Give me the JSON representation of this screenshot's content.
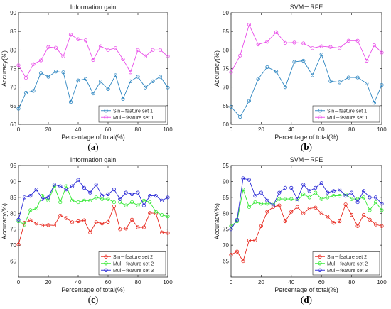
{
  "chart_data": [
    {
      "type": "line",
      "title": "Information gain",
      "xlabel": "Percentage of total(%)",
      "ylabel": "Accuracy(%)",
      "xlim": [
        0,
        100
      ],
      "ylim": [
        60,
        90
      ],
      "xticks": [
        0,
        20,
        40,
        60,
        80,
        100
      ],
      "yticks": [
        60,
        65,
        70,
        75,
        80,
        85,
        90
      ],
      "panel_label": "a",
      "legend_position": "bottom-right",
      "x": [
        0,
        5,
        10,
        15,
        20,
        25,
        30,
        35,
        40,
        45,
        50,
        55,
        60,
        65,
        70,
        75,
        80,
        85,
        90,
        95,
        100
      ],
      "series": [
        {
          "name": "Sin－feature set 1",
          "color": "#2e86c1",
          "values": [
            64.2,
            68.5,
            69.0,
            73.8,
            72.8,
            74.2,
            74.0,
            66.0,
            71.8,
            72.2,
            68.3,
            71.5,
            69.5,
            73.2,
            66.8,
            71.6,
            72.8,
            69.9,
            71.6,
            72.8,
            69.9
          ]
        },
        {
          "name": "Mul－feature set 1",
          "color": "#e94fe9",
          "values": [
            75.9,
            72.5,
            76.2,
            77.2,
            80.8,
            80.6,
            78.3,
            84.1,
            82.9,
            82.6,
            77.3,
            81.0,
            80.0,
            80.5,
            77.5,
            74.0,
            80.0,
            78.3,
            80.0,
            80.0,
            78.3
          ]
        }
      ]
    },
    {
      "type": "line",
      "title": "SVM－RFE",
      "xlabel": "Percentage of total(%)",
      "ylabel": "Accuracy(%)",
      "xlim": [
        0,
        100
      ],
      "ylim": [
        60,
        90
      ],
      "xticks": [
        0,
        20,
        40,
        60,
        80,
        100
      ],
      "yticks": [
        60,
        65,
        70,
        75,
        80,
        85,
        90
      ],
      "panel_label": "b",
      "legend_position": "bottom-right",
      "x": [
        0,
        6,
        12,
        18,
        24,
        30,
        36,
        42,
        48,
        54,
        60,
        66,
        72,
        78,
        84,
        90,
        95,
        100
      ],
      "series": [
        {
          "name": "Sin－feature set 1",
          "color": "#2e86c1",
          "values": [
            64.7,
            62.0,
            66.3,
            72.2,
            75.4,
            74.2,
            70.0,
            76.8,
            77.1,
            73.2,
            78.8,
            71.6,
            71.3,
            72.6,
            72.6,
            71.0,
            65.8,
            70.6
          ]
        },
        {
          "name": "Mul－feature set 1",
          "color": "#e94fe9",
          "values": [
            74.0,
            78.5,
            86.8,
            81.5,
            82.2,
            84.8,
            81.9,
            82.0,
            81.8,
            80.5,
            81.0,
            80.8,
            80.5,
            82.5,
            82.5,
            77.1,
            81.3,
            79.3
          ]
        }
      ]
    },
    {
      "type": "line",
      "title": "Information gain",
      "xlabel": "Percentage of total(%)",
      "ylabel": "Accuracy(%)",
      "xlim": [
        0,
        100
      ],
      "ylim": [
        60,
        95
      ],
      "xticks": [
        0,
        20,
        40,
        60,
        80,
        100
      ],
      "yticks": [
        65,
        70,
        75,
        80,
        85,
        90,
        95
      ],
      "panel_label": "c",
      "legend_position": "bottom-right",
      "x": [
        0,
        4,
        8,
        12,
        16,
        20,
        24,
        28,
        32,
        36,
        40,
        44,
        48,
        52,
        56,
        60,
        64,
        68,
        72,
        76,
        80,
        84,
        88,
        92,
        96,
        100
      ],
      "series": [
        {
          "name": "Sin－feature set 2",
          "color": "#e8281e",
          "values": [
            70.2,
            77.0,
            77.8,
            76.8,
            76.2,
            76.3,
            76.2,
            79.3,
            78.5,
            77.2,
            77.5,
            77.8,
            74.0,
            77.2,
            76.8,
            77.3,
            82.2,
            75.0,
            75.2,
            78.0,
            75.6,
            75.6,
            80.1,
            80.0,
            74.0,
            73.8
          ]
        },
        {
          "name": "Mul－feature set 2",
          "color": "#33e833",
          "values": [
            77.5,
            76.5,
            81.0,
            81.5,
            85.5,
            84.0,
            88.5,
            83.5,
            88.5,
            84.0,
            83.5,
            84.0,
            84.0,
            85.0,
            84.5,
            84.5,
            83.5,
            83.5,
            82.5,
            83.5,
            82.5,
            84.0,
            83.5,
            80.5,
            79.5,
            79.0
          ]
        },
        {
          "name": "Mul－feature set 3",
          "color": "#2828d6",
          "values": [
            78.0,
            85.0,
            85.5,
            87.5,
            84.5,
            85.0,
            89.0,
            88.5,
            87.5,
            88.5,
            90.5,
            88.0,
            86.5,
            89.0,
            85.5,
            86.0,
            87.5,
            84.5,
            86.5,
            86.0,
            86.5,
            82.5,
            85.5,
            85.5,
            84.0,
            85.0
          ]
        }
      ]
    },
    {
      "type": "line",
      "title": "SVM－RFE",
      "xlabel": "Percentage of total(%)",
      "ylabel": "Accuracy(%)",
      "xlim": [
        0,
        100
      ],
      "ylim": [
        60,
        95
      ],
      "xticks": [
        0,
        20,
        40,
        60,
        80,
        100
      ],
      "yticks": [
        65,
        70,
        75,
        80,
        85,
        90,
        95
      ],
      "panel_label": "d",
      "legend_position": "bottom-right",
      "x": [
        0,
        4,
        8,
        12,
        16,
        20,
        24,
        28,
        32,
        36,
        40,
        44,
        48,
        52,
        56,
        60,
        64,
        68,
        72,
        76,
        80,
        84,
        88,
        92,
        96,
        100
      ],
      "series": [
        {
          "name": "Sin－feature set 2",
          "color": "#e8281e",
          "values": [
            67.0,
            68.0,
            65.0,
            71.5,
            71.5,
            76.0,
            80.5,
            82.0,
            82.5,
            77.5,
            80.5,
            82.0,
            80.0,
            81.5,
            81.8,
            80.0,
            79.0,
            77.0,
            77.5,
            82.8,
            79.5,
            76.0,
            79.5,
            78.0,
            76.5,
            76.0
          ]
        },
        {
          "name": "Mul－feature set 2",
          "color": "#33e833",
          "values": [
            76.0,
            77.5,
            87.5,
            82.0,
            83.5,
            83.0,
            83.0,
            83.0,
            84.5,
            84.5,
            84.5,
            84.0,
            86.0,
            85.0,
            86.5,
            84.5,
            85.0,
            85.5,
            85.5,
            86.0,
            84.5,
            84.5,
            85.0,
            81.0,
            83.5,
            81.0
          ]
        },
        {
          "name": "Mul－feature set 3",
          "color": "#2828d6",
          "values": [
            75.0,
            78.0,
            91.0,
            90.5,
            85.5,
            86.5,
            84.0,
            82.5,
            86.5,
            88.0,
            88.0,
            84.5,
            89.0,
            87.0,
            88.0,
            89.5,
            86.5,
            87.0,
            87.5,
            85.5,
            86.5,
            83.5,
            87.0,
            85.0,
            85.0,
            83.0
          ]
        }
      ]
    }
  ]
}
